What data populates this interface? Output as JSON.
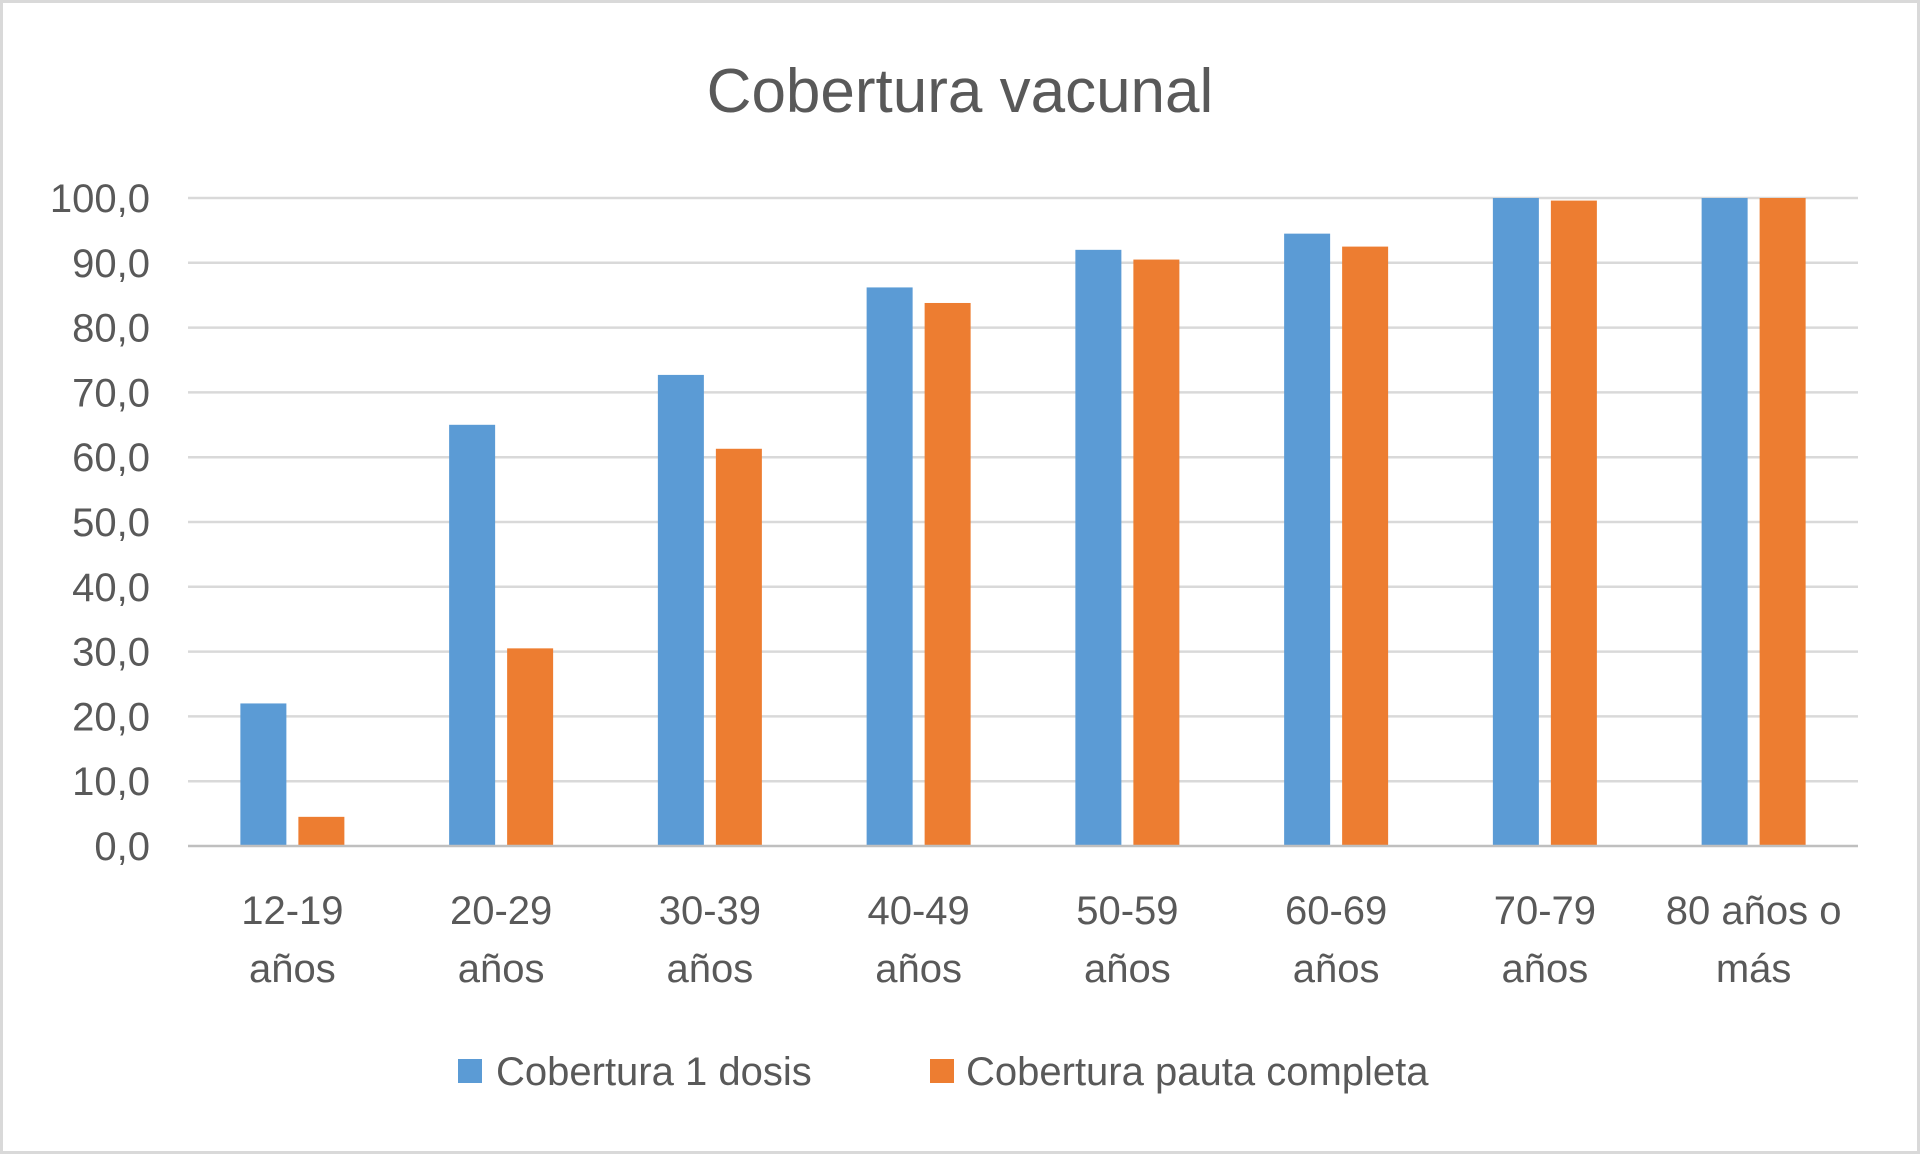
{
  "chart_data": {
    "type": "bar",
    "title": "Cobertura vacunal",
    "xlabel": "",
    "ylabel": "",
    "ylim": [
      0,
      100
    ],
    "y_ticks": [
      "0,0",
      "10,0",
      "20,0",
      "30,0",
      "40,0",
      "50,0",
      "60,0",
      "70,0",
      "80,0",
      "90,0",
      "100,0"
    ],
    "y_tick_values": [
      0,
      10,
      20,
      30,
      40,
      50,
      60,
      70,
      80,
      90,
      100
    ],
    "categories": [
      [
        "12-19",
        "años"
      ],
      [
        "20-29",
        "años"
      ],
      [
        "30-39",
        "años"
      ],
      [
        "40-49",
        "años"
      ],
      [
        "50-59",
        "años"
      ],
      [
        "60-69",
        "años"
      ],
      [
        "70-79",
        "años"
      ],
      [
        "80 años o",
        "más"
      ]
    ],
    "series": [
      {
        "name": "Cobertura 1 dosis",
        "color": "#5b9bd5",
        "values": [
          22.0,
          65.0,
          72.7,
          86.2,
          92.0,
          94.5,
          100.0,
          100.0
        ]
      },
      {
        "name": "Cobertura pauta completa",
        "color": "#ed7d31",
        "values": [
          4.5,
          30.5,
          61.3,
          83.8,
          90.5,
          92.5,
          99.6,
          100.0
        ]
      }
    ],
    "grid": true,
    "legend_position": "bottom"
  }
}
